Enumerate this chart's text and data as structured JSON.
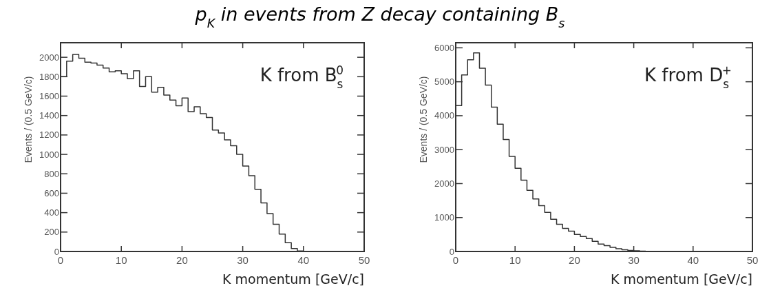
{
  "chart_data": [
    {
      "type": "histogram",
      "title": "p$_{K}$ in events from Z decay containing B$_{s}$",
      "xlabel": "K momentum [GeV/c]",
      "ylabel": "Events / (0.5 GeV/c)",
      "annotations": [
        "K from B$_{s}$$^{0}$"
      ],
      "color": "#333333",
      "bins": [
        0,
        1,
        2,
        3,
        4,
        5,
        6,
        7,
        8,
        9,
        10,
        11,
        12,
        13,
        14,
        15,
        16,
        17,
        18,
        19,
        20,
        21,
        22,
        23,
        24,
        25,
        26,
        27,
        28,
        29,
        30,
        31,
        32,
        33,
        34,
        35,
        36,
        37,
        38,
        39,
        40,
        41,
        42,
        43,
        44,
        45,
        46,
        47,
        48,
        49,
        50
      ],
      "values": [
        1800,
        1960,
        2030,
        1990,
        1950,
        1940,
        1920,
        1890,
        1850,
        1860,
        1830,
        1780,
        1860,
        1700,
        1800,
        1640,
        1690,
        1610,
        1560,
        1500,
        1580,
        1440,
        1490,
        1420,
        1380,
        1250,
        1220,
        1150,
        1090,
        1000,
        880,
        780,
        640,
        500,
        390,
        280,
        180,
        90,
        30,
        5,
        0,
        0,
        0,
        0,
        0,
        0,
        0,
        0,
        0,
        0
      ],
      "xlim": [
        0,
        50
      ],
      "ylim": [
        0,
        2150
      ],
      "xticks": [
        0,
        10,
        20,
        30,
        40,
        50
      ],
      "yticks": [
        0,
        200,
        400,
        600,
        800,
        1000,
        1200,
        1400,
        1600,
        1800,
        2000
      ]
    },
    {
      "type": "histogram",
      "xlabel": "K momentum [GeV/c]",
      "ylabel": "Events / (0.5 GeV/c)",
      "annotations": [
        "K from D$_{s}$$^{+}$"
      ],
      "color": "#333333",
      "bins": [
        0,
        1,
        2,
        3,
        4,
        5,
        6,
        7,
        8,
        9,
        10,
        11,
        12,
        13,
        14,
        15,
        16,
        17,
        18,
        19,
        20,
        21,
        22,
        23,
        24,
        25,
        26,
        27,
        28,
        29,
        30,
        31,
        32,
        33,
        34,
        35,
        36,
        37,
        38,
        39,
        40,
        41,
        42,
        43,
        44,
        45,
        46,
        47,
        48,
        49,
        50
      ],
      "values": [
        4300,
        5200,
        5650,
        5850,
        5400,
        4900,
        4250,
        3750,
        3300,
        2800,
        2450,
        2100,
        1800,
        1550,
        1350,
        1150,
        950,
        800,
        680,
        600,
        500,
        440,
        380,
        300,
        220,
        170,
        120,
        80,
        50,
        30,
        20,
        10,
        0,
        0,
        0,
        0,
        0,
        0,
        0,
        0,
        0,
        0,
        0,
        0,
        0,
        0,
        0,
        0,
        0,
        0
      ],
      "xlim": [
        0,
        50
      ],
      "ylim": [
        0,
        6150
      ],
      "xticks": [
        0,
        10,
        20,
        30,
        40,
        50
      ],
      "yticks": [
        0,
        1000,
        2000,
        3000,
        4000,
        5000,
        6000
      ]
    }
  ]
}
